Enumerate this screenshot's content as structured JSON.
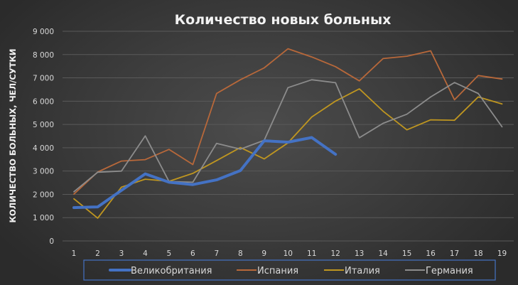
{
  "chart_data": {
    "type": "line",
    "title": "Количество новых больных",
    "xlabel": "",
    "ylabel": "КОЛИЧЕСТВО БОЛЬНЫХ, ЧЕЛ/СУТКИ",
    "ylim": [
      0,
      9000
    ],
    "yticks": [
      "0",
      "1 000",
      "2 000",
      "3 000",
      "4 000",
      "5 000",
      "6 000",
      "7 000",
      "8 000",
      "9 000"
    ],
    "x": [
      1,
      2,
      3,
      4,
      5,
      6,
      7,
      8,
      9,
      10,
      11,
      12,
      13,
      14,
      15,
      16,
      17,
      18,
      19
    ],
    "grid": "horizontal",
    "legend_position": "bottom",
    "series": [
      {
        "name": "Великобритания",
        "color": "#4472c4",
        "width": 4,
        "values": [
          1430,
          1460,
          2170,
          2880,
          2520,
          2420,
          2620,
          3020,
          4300,
          4240,
          4440,
          3720,
          null,
          null,
          null,
          null,
          null,
          null,
          null
        ]
      },
      {
        "name": "Испания",
        "color": "#b8683a",
        "width": 1.8,
        "values": [
          2010,
          2960,
          3430,
          3490,
          3930,
          3280,
          6330,
          6920,
          7430,
          8250,
          7900,
          7480,
          6870,
          7830,
          7930,
          8160,
          6060,
          7100,
          6950
        ]
      },
      {
        "name": "Италия",
        "color": "#bf9620",
        "width": 1.8,
        "values": [
          1810,
          980,
          2310,
          2650,
          2560,
          2900,
          3450,
          4010,
          3520,
          4210,
          5320,
          6000,
          6530,
          5570,
          4770,
          5200,
          5180,
          6180,
          5880
        ]
      },
      {
        "name": "Германия",
        "color": "#8c8c8c",
        "width": 1.8,
        "values": [
          2110,
          2950,
          3000,
          4510,
          2550,
          2520,
          4190,
          3940,
          4320,
          6580,
          6920,
          6790,
          4430,
          5050,
          5440,
          6180,
          6800,
          6330,
          4900
        ]
      }
    ]
  }
}
